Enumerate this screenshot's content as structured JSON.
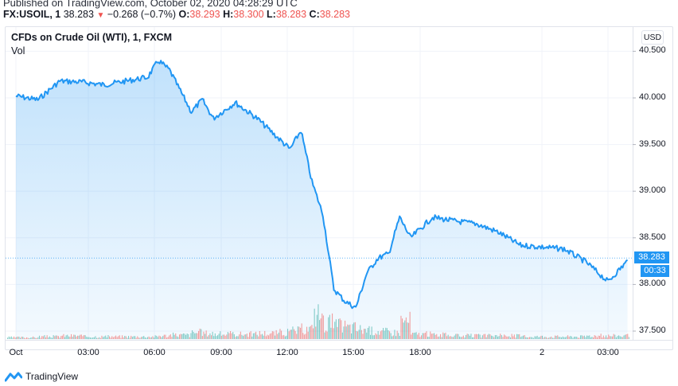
{
  "header": {
    "published": "Published on TradingView.com, October 02, 2020 04:28:29 UTC",
    "symbol": "FX:USOIL, 1",
    "last": "38.283",
    "change": "−0.268 (−0.7%)",
    "direction_icon": "triangle-down-icon",
    "o_label": "O:",
    "o_value": "38.293",
    "h_label": "H:",
    "h_value": "38.300",
    "l_label": "L:",
    "l_value": "38.283",
    "c_label": "C:",
    "c_value": "38.283"
  },
  "legend": {
    "title": "CFDs on Crude Oil (WTI), 1, FXCM",
    "vol": "Vol"
  },
  "currency_button": "USD",
  "current_price_label": "38.283",
  "countdown_label": "00:33",
  "brand": "TradingView",
  "colors": {
    "line": "#2196f3",
    "down": "#ef5350",
    "up": "#26a69a",
    "grid": "#f0f3fa"
  },
  "chart_data": {
    "type": "area",
    "title": "CFDs on Crude Oil (WTI), 1, FXCM",
    "xlabel": "",
    "ylabel": "USD",
    "ylim": [
      37.4,
      40.6
    ],
    "grid": true,
    "legend_position": "top-left",
    "y_ticks": [
      "40.500",
      "40.000",
      "39.500",
      "39.000",
      "38.500",
      "38.000",
      "37.500"
    ],
    "x_ticks": [
      "Oct",
      "03:00",
      "06:00",
      "09:00",
      "12:00",
      "15:00",
      "18:00",
      "2",
      "03:00"
    ],
    "x": [
      "00:00",
      "01:00",
      "02:00",
      "03:00",
      "04:00",
      "05:00",
      "06:00",
      "06:30",
      "07:00",
      "08:00",
      "08:30",
      "09:00",
      "10:00",
      "11:00",
      "12:00",
      "12:30",
      "13:00",
      "13:30",
      "14:00",
      "14:30",
      "15:00",
      "15:30",
      "16:00",
      "16:30",
      "17:00",
      "17:30",
      "18:00",
      "19:00",
      "20:00",
      "21:00",
      "22:00",
      "23:00",
      "00:00 (2)",
      "01:00",
      "02:00",
      "03:00",
      "04:00",
      "04:28"
    ],
    "series": [
      {
        "name": "Price",
        "values": [
          40.02,
          39.98,
          40.18,
          40.17,
          40.14,
          40.18,
          40.22,
          40.4,
          40.3,
          39.85,
          39.98,
          39.78,
          39.95,
          39.78,
          39.56,
          39.45,
          39.65,
          39.1,
          38.75,
          37.95,
          37.82,
          37.75,
          38.12,
          38.28,
          38.33,
          38.72,
          38.5,
          38.72,
          38.68,
          38.65,
          38.56,
          38.42,
          38.4,
          38.38,
          38.24,
          38.03,
          38.28,
          38.28
        ]
      },
      {
        "name": "Vol",
        "values": [
          2,
          3,
          4,
          3,
          3,
          3,
          3,
          4,
          5,
          8,
          7,
          6,
          6,
          7,
          8,
          10,
          12,
          30,
          20,
          16,
          14,
          12,
          10,
          9,
          8,
          22,
          6,
          5,
          4,
          4,
          4,
          3,
          3,
          3,
          4,
          4,
          3,
          2
        ]
      }
    ]
  }
}
